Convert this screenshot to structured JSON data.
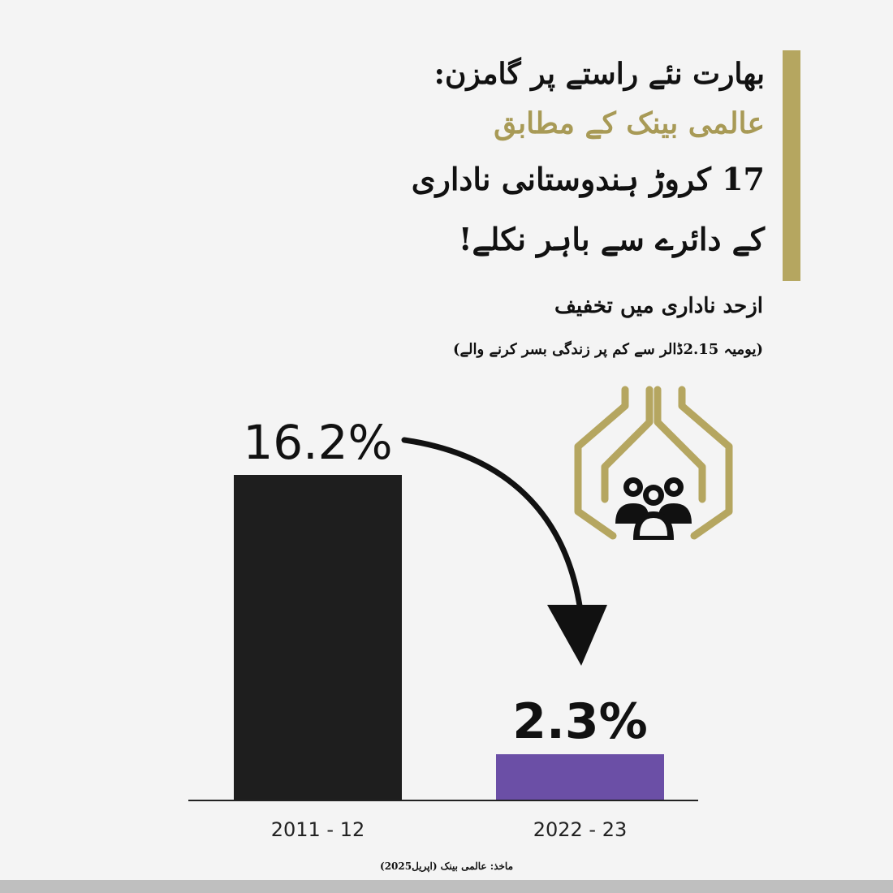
{
  "headline": {
    "line1": "بھارت نئے راستے پر گامزن:",
    "line2": "عالمی بینک کے مطابق",
    "line3": "17 کروڑ ہندوستانی ناداری",
    "line4": "کے دائرے سے باہر نکلے!"
  },
  "subtitle": "ازحد ناداری میں تخفیف",
  "note": "(یومیہ 2.15ڈالر سے کم پر زندگی بسر کرنے والے)",
  "source": "ماخذ: عالمی بینک (اپریل2025)",
  "colors": {
    "accent": "#b5a660",
    "accent_text": "#a89a56",
    "bar_2011": "#1e1e1e",
    "bar_2022": "#6b4fa6",
    "background": "#f4f4f4"
  },
  "icons": [
    "hands-protecting-people-icon",
    "curved-down-arrow-icon"
  ],
  "chart_data": {
    "type": "bar",
    "categories": [
      "2011 - 12",
      "2022 - 23"
    ],
    "values": [
      16.2,
      2.3
    ],
    "value_labels": [
      "16.2%",
      "2.3%"
    ],
    "unit": "%",
    "title": "",
    "xlabel": "",
    "ylabel": "",
    "ylim": [
      0,
      16.2
    ],
    "grid": false,
    "legend": "none",
    "annotation": "curved arrow from the 16.2% label down to the 2.3% bar"
  }
}
